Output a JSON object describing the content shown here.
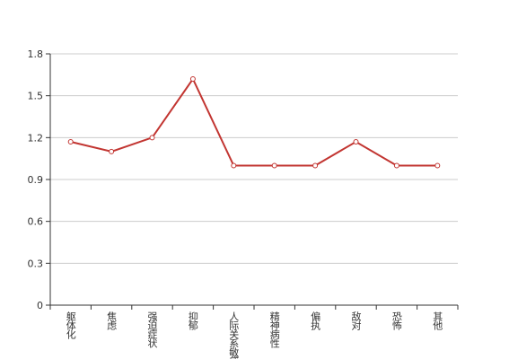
{
  "chart_data": {
    "type": "line",
    "categories": [
      "躯体化",
      "焦虑",
      "强迫症状",
      "抑郁",
      "人际关系敏感",
      "精神病性",
      "偏执",
      "敌对",
      "恐怖",
      "其他"
    ],
    "values": [
      1.17,
      1.1,
      1.2,
      1.62,
      1.0,
      1.0,
      1.0,
      1.17,
      1.0,
      1.0
    ],
    "color": "#c23531",
    "ylim": [
      0,
      1.8
    ],
    "yticks": [
      0,
      0.3,
      0.6,
      0.9,
      1.2,
      1.5,
      1.8
    ],
    "grid": true
  }
}
